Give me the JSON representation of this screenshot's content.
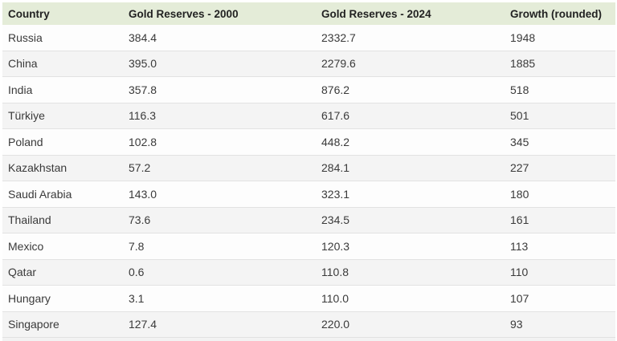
{
  "table": {
    "columns": [
      "Country",
      "Gold Reserves - 2000",
      "Gold Reserves - 2024",
      "Growth (rounded)"
    ],
    "rows": [
      [
        "Russia",
        "384.4",
        "2332.7",
        "1948"
      ],
      [
        "China",
        "395.0",
        "2279.6",
        "1885"
      ],
      [
        "India",
        "357.8",
        "876.2",
        "518"
      ],
      [
        "Türkiye",
        "116.3",
        "617.6",
        "501"
      ],
      [
        "Poland",
        "102.8",
        "448.2",
        "345"
      ],
      [
        "Kazakhstan",
        "57.2",
        "284.1",
        "227"
      ],
      [
        "Saudi Arabia",
        "143.0",
        "323.1",
        "180"
      ],
      [
        "Thailand",
        "73.6",
        "234.5",
        "161"
      ],
      [
        "Mexico",
        "7.8",
        "120.3",
        "113"
      ],
      [
        "Qatar",
        "0.6",
        "110.8",
        "110"
      ],
      [
        "Hungary",
        "3.1",
        "110.0",
        "107"
      ],
      [
        "Singapore",
        "127.4",
        "220.0",
        "93"
      ]
    ]
  },
  "chart_data": {
    "type": "table",
    "columns": [
      "Country",
      "Gold Reserves - 2000",
      "Gold Reserves - 2024",
      "Growth (rounded)"
    ],
    "rows": [
      {
        "country": "Russia",
        "reserves_2000": 384.4,
        "reserves_2024": 2332.7,
        "growth_pct_rounded": 1948
      },
      {
        "country": "China",
        "reserves_2000": 395.0,
        "reserves_2024": 2279.6,
        "growth_pct_rounded": 1885
      },
      {
        "country": "India",
        "reserves_2000": 357.8,
        "reserves_2024": 876.2,
        "growth_pct_rounded": 518
      },
      {
        "country": "Türkiye",
        "reserves_2000": 116.3,
        "reserves_2024": 617.6,
        "growth_pct_rounded": 501
      },
      {
        "country": "Poland",
        "reserves_2000": 102.8,
        "reserves_2024": 448.2,
        "growth_pct_rounded": 345
      },
      {
        "country": "Kazakhstan",
        "reserves_2000": 57.2,
        "reserves_2024": 284.1,
        "growth_pct_rounded": 227
      },
      {
        "country": "Saudi Arabia",
        "reserves_2000": 143.0,
        "reserves_2024": 323.1,
        "growth_pct_rounded": 180
      },
      {
        "country": "Thailand",
        "reserves_2000": 73.6,
        "reserves_2024": 234.5,
        "growth_pct_rounded": 161
      },
      {
        "country": "Mexico",
        "reserves_2000": 7.8,
        "reserves_2024": 120.3,
        "growth_pct_rounded": 113
      },
      {
        "country": "Qatar",
        "reserves_2000": 0.6,
        "reserves_2024": 110.8,
        "growth_pct_rounded": 110
      },
      {
        "country": "Hungary",
        "reserves_2000": 3.1,
        "reserves_2024": 110.0,
        "growth_pct_rounded": 107
      },
      {
        "country": "Singapore",
        "reserves_2000": 127.4,
        "reserves_2024": 220.0,
        "growth_pct_rounded": 93
      }
    ],
    "layout": {
      "striped_rows": true,
      "header_background": "#e4ecd8"
    }
  },
  "colors": {
    "header_bg": "#e4ecd8",
    "row_bg": "#fdfdfd",
    "row_alt_bg": "#f4f4f4",
    "divider": "#e2e2e2",
    "header_text": "#222222",
    "body_text": "#3a3a3a"
  }
}
